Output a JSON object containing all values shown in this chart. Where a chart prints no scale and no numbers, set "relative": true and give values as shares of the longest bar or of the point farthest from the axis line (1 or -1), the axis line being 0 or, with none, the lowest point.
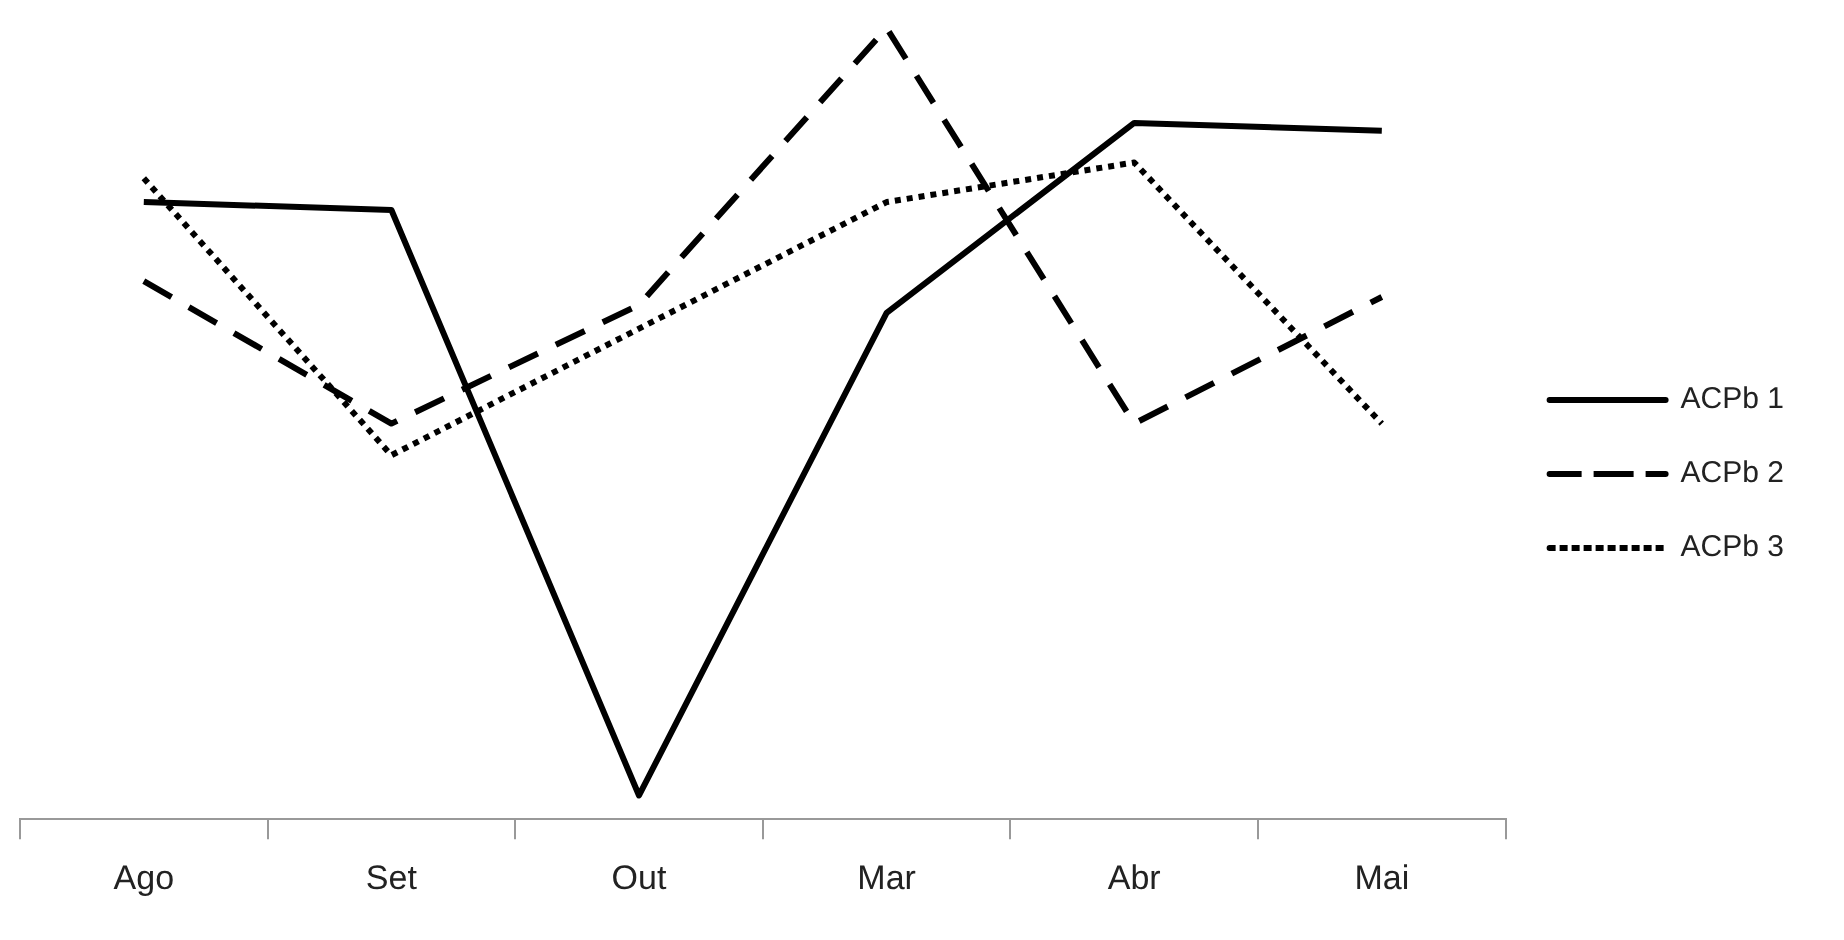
{
  "chart_data": {
    "type": "line",
    "relative": true,
    "categories": [
      "Ago",
      "Set",
      "Out",
      "Mar",
      "Abr",
      "Mai"
    ],
    "legend": "right",
    "marker": "none",
    "grid": false,
    "series": [
      {
        "name": "ACPb 1",
        "color": "#000000",
        "line_style": "solid",
        "values": [
          0.78,
          0.77,
          0.03,
          0.64,
          0.88,
          0.87
        ]
      },
      {
        "name": "ACPb 2",
        "color": "#000000",
        "line_style": "dashed",
        "values": [
          0.68,
          0.5,
          0.65,
          1,
          0.5,
          0.66
        ]
      },
      {
        "name": "ACPb 3",
        "color": "#000000",
        "line_style": "dotted",
        "values": [
          0.81,
          0.46,
          0.62,
          0.78,
          0.83,
          0.5
        ]
      }
    ]
  }
}
